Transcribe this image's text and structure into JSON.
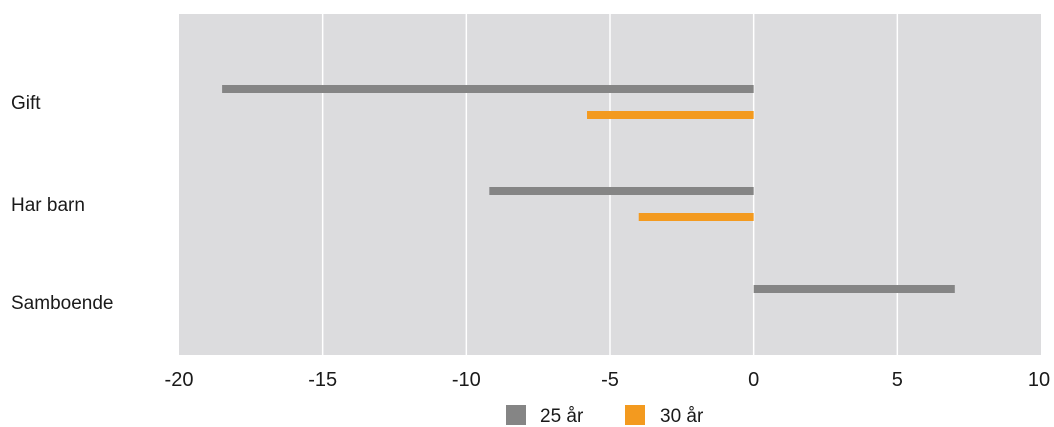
{
  "chart_data": {
    "type": "bar",
    "orientation": "horizontal",
    "title": "",
    "xlabel": "",
    "ylabel": "",
    "xlim": [
      -20,
      10
    ],
    "xticks": [
      -20,
      -15,
      -10,
      -5,
      0,
      5,
      10
    ],
    "xtick_labels": [
      "-20",
      "-15",
      "-10",
      "-5",
      "0",
      "5",
      "10"
    ],
    "grid": "vertical",
    "categories": [
      "Gift",
      "Har barn",
      "Samboende"
    ],
    "series": [
      {
        "name": "25 år",
        "color": "#858585",
        "values": [
          -18.5,
          -9.2,
          7.0
        ]
      },
      {
        "name": "30 år",
        "color": "#f39a1f",
        "values": [
          -5.8,
          -4.0,
          null
        ]
      }
    ],
    "legend_position": "bottom",
    "plot_background": "#dcdcde",
    "grid_color": "#ffffff"
  }
}
